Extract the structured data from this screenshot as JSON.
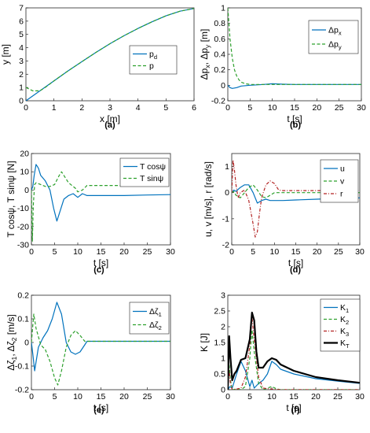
{
  "chart_data": [
    {
      "panel_label": "(a)",
      "type": "line",
      "xlabel": "x [m]",
      "ylabel": "y [m]",
      "xlim": [
        0,
        6
      ],
      "ylim": [
        0,
        7
      ],
      "xticks": [
        "0",
        "1",
        "2",
        "3",
        "4",
        "5",
        "6"
      ],
      "yticks": [
        "0",
        "1",
        "2",
        "3",
        "4",
        "5",
        "6",
        "7"
      ],
      "grid": false,
      "legend": "center-right",
      "series": [
        {
          "name": "p_d",
          "color": "#0072BD",
          "dash": "solid",
          "x": [
            0,
            0.5,
            1,
            1.5,
            2,
            2.5,
            3,
            3.5,
            4,
            4.5,
            5,
            5.5,
            6
          ],
          "y": [
            0,
            0.75,
            1.5,
            2.25,
            2.95,
            3.65,
            4.3,
            4.9,
            5.45,
            5.95,
            6.4,
            6.75,
            6.95
          ]
        },
        {
          "name": "p",
          "color": "#2CA02C",
          "dash": "dashed",
          "x": [
            0,
            0.25,
            0.5,
            0.75,
            1,
            1.5,
            2,
            2.5,
            3,
            3.5,
            4,
            4.5,
            5,
            5.5,
            6
          ],
          "y": [
            1,
            0.75,
            0.75,
            1.1,
            1.5,
            2.25,
            2.95,
            3.65,
            4.3,
            4.9,
            5.45,
            5.95,
            6.4,
            6.75,
            6.95
          ]
        }
      ]
    },
    {
      "panel_label": "(b)",
      "type": "line",
      "xlabel": "t [s]",
      "ylabel": "Δp_x, Δp_y [m]",
      "xlim": [
        0,
        30
      ],
      "ylim": [
        -0.2,
        1
      ],
      "xticks": [
        "0",
        "5",
        "10",
        "15",
        "20",
        "25",
        "30"
      ],
      "yticks": [
        "-0.2",
        "0",
        "0.2",
        "0.4",
        "0.6",
        "0.8",
        "1"
      ],
      "grid": false,
      "legend": "top-right",
      "series": [
        {
          "name": "Δp_x",
          "color": "#0072BD",
          "dash": "solid",
          "x": [
            0,
            0.5,
            1,
            2,
            3,
            5,
            8,
            10,
            12,
            15,
            20,
            25,
            30
          ],
          "y": [
            0,
            -0.03,
            -0.04,
            -0.03,
            -0.01,
            0.0,
            0.01,
            0.02,
            0.015,
            0.01,
            0.01,
            0.01,
            0.01
          ]
        },
        {
          "name": "Δp_y",
          "color": "#2CA02C",
          "dash": "dashed",
          "x": [
            0,
            0.5,
            1,
            1.5,
            2,
            2.5,
            3,
            4,
            5,
            8,
            10,
            15,
            20,
            30
          ],
          "y": [
            1,
            0.6,
            0.35,
            0.2,
            0.12,
            0.07,
            0.04,
            0.02,
            0.01,
            0.01,
            0.01,
            0.01,
            0.01,
            0.01
          ]
        }
      ]
    },
    {
      "panel_label": "(c)",
      "type": "line",
      "xlabel": "t [s]",
      "ylabel": "T cosψ, T sinψ [N]",
      "xlim": [
        0,
        30
      ],
      "ylim": [
        -30,
        20
      ],
      "xticks": [
        "0",
        "5",
        "10",
        "15",
        "20",
        "25",
        "30"
      ],
      "yticks": [
        "-30",
        "-20",
        "-10",
        "0",
        "10",
        "20"
      ],
      "grid": false,
      "legend": "top-right",
      "series": [
        {
          "name": "T cosψ",
          "color": "#0072BD",
          "dash": "solid",
          "x": [
            0,
            0.3,
            0.6,
            1,
            1.5,
            2,
            3,
            4,
            4.8,
            5.5,
            6,
            7,
            8,
            9,
            10,
            11,
            12,
            15,
            20,
            25,
            30
          ],
          "y": [
            0,
            2,
            8,
            14,
            12,
            8,
            5,
            0,
            -10,
            -17,
            -13,
            -5,
            -3,
            -2,
            -4,
            -2,
            -3,
            -3,
            -3,
            -2.7,
            -2.5
          ]
        },
        {
          "name": "T sinψ",
          "color": "#2CA02C",
          "dash": "dashed",
          "x": [
            0,
            0.2,
            0.4,
            0.7,
            1,
            2,
            3,
            4,
            5,
            6,
            6.5,
            7,
            8,
            9,
            9.5,
            10,
            11,
            12,
            15,
            30
          ],
          "y": [
            0,
            -28,
            -8,
            3,
            4,
            3,
            2,
            2,
            3,
            8,
            10,
            8,
            4,
            2,
            1,
            -1,
            0,
            2.5,
            2.5,
            2.5
          ]
        }
      ]
    },
    {
      "panel_label": "(d)",
      "type": "line",
      "xlabel": "t [s]",
      "ylabel": "u, v [m/s], r [rad/s]",
      "xlim": [
        0,
        30
      ],
      "ylim": [
        -2,
        1.5
      ],
      "xticks": [
        "0",
        "5",
        "10",
        "15",
        "20",
        "25",
        "30"
      ],
      "yticks": [
        "-2",
        "-1",
        "0",
        "1"
      ],
      "grid": false,
      "legend": "top-right",
      "series": [
        {
          "name": "u",
          "color": "#0072BD",
          "dash": "solid",
          "x": [
            0,
            0.5,
            1,
            2,
            3,
            4,
            5,
            6,
            7,
            8,
            9,
            10,
            12,
            15,
            20,
            25,
            30
          ],
          "y": [
            0,
            0.1,
            0.05,
            0.2,
            0.3,
            0.3,
            0.0,
            -0.4,
            -0.3,
            -0.25,
            -0.3,
            -0.3,
            -0.3,
            -0.28,
            -0.25,
            -0.22,
            -0.2
          ]
        },
        {
          "name": "v",
          "color": "#2CA02C",
          "dash": "dashed",
          "x": [
            0,
            0.5,
            1,
            2,
            3,
            4,
            5,
            6,
            7,
            8,
            9,
            10,
            12,
            15,
            20,
            30
          ],
          "y": [
            0,
            0.05,
            -0.1,
            -0.2,
            0.0,
            0.2,
            0.3,
            0.1,
            -0.15,
            -0.2,
            -0.1,
            0.0,
            0.0,
            0.0,
            0.0,
            0.0
          ]
        },
        {
          "name": "r",
          "color": "#B22222",
          "dash": "dashdot",
          "x": [
            0,
            0.3,
            0.6,
            1,
            1.5,
            2,
            3,
            4,
            5,
            5.5,
            6,
            6.5,
            7,
            8,
            9,
            10,
            11,
            12,
            15,
            20,
            30
          ],
          "y": [
            0,
            1.25,
            0.9,
            0.3,
            -0.2,
            0.0,
            0.1,
            -0.3,
            -1.2,
            -1.7,
            -1.5,
            -0.8,
            -0.2,
            0.3,
            0.45,
            0.35,
            0.1,
            0.08,
            0.08,
            0.08,
            0.08
          ]
        }
      ]
    },
    {
      "panel_label": "(e)",
      "type": "line",
      "xlabel": "t [s]",
      "ylabel": "Δζ_1, Δζ_2 [m/s]",
      "xlim": [
        0,
        30
      ],
      "ylim": [
        -0.2,
        0.2
      ],
      "xticks": [
        "0",
        "5",
        "10",
        "15",
        "20",
        "25",
        "30"
      ],
      "yticks": [
        "-0.2",
        "-0.1",
        "0",
        "0.1",
        "0.2"
      ],
      "grid": false,
      "legend": "top-right",
      "series": [
        {
          "name": "Δζ_1",
          "color": "#0072BD",
          "dash": "solid",
          "x": [
            0,
            0.3,
            0.7,
            1.5,
            2.5,
            3.5,
            4.5,
            5.5,
            6.5,
            7.5,
            8.5,
            9.5,
            10.5,
            11.5,
            12,
            15,
            20,
            30
          ],
          "y": [
            0,
            -0.05,
            -0.12,
            -0.02,
            0.02,
            0.05,
            0.1,
            0.17,
            0.12,
            0.0,
            -0.04,
            -0.05,
            -0.04,
            -0.01,
            0.005,
            0.005,
            0.005,
            0.005
          ]
        },
        {
          "name": "Δζ_2",
          "color": "#2CA02C",
          "dash": "dashed",
          "x": [
            0,
            0.2,
            0.5,
            1,
            2,
            3,
            4,
            5,
            5.7,
            6.5,
            7.5,
            8.5,
            9.5,
            10.5,
            11.5,
            12,
            15,
            30
          ],
          "y": [
            0,
            0.05,
            0.12,
            0.06,
            -0.01,
            -0.03,
            -0.08,
            -0.15,
            -0.18,
            -0.12,
            -0.02,
            0.03,
            0.05,
            0.03,
            0.005,
            0.005,
            0.005,
            0.005
          ]
        }
      ]
    },
    {
      "panel_label": "(f)",
      "type": "line",
      "xlabel": "t [s]",
      "ylabel": "K [J]",
      "xlim": [
        0,
        30
      ],
      "ylim": [
        0,
        3
      ],
      "xticks": [
        "0",
        "5",
        "10",
        "15",
        "20",
        "25",
        "30"
      ],
      "yticks": [
        "0",
        "0.5",
        "1",
        "1.5",
        "2",
        "2.5",
        "3"
      ],
      "grid": false,
      "legend": "top-right",
      "series": [
        {
          "name": "K_1",
          "color": "#0072BD",
          "dash": "solid",
          "x": [
            0,
            0.5,
            1,
            2,
            3,
            4,
            5,
            5.5,
            6,
            7,
            8,
            9,
            10,
            11,
            12,
            15,
            20,
            25,
            30
          ],
          "y": [
            0,
            0.1,
            0.05,
            0.5,
            0.9,
            0.6,
            0.1,
            0.3,
            0.05,
            0.2,
            0.3,
            0.5,
            0.9,
            0.8,
            0.65,
            0.5,
            0.35,
            0.27,
            0.2
          ]
        },
        {
          "name": "K_2",
          "color": "#2CA02C",
          "dash": "dashed",
          "x": [
            0,
            0.3,
            0.6,
            1,
            2,
            3,
            4,
            5,
            5.5,
            6,
            7,
            8,
            9,
            10,
            11,
            12,
            15,
            30
          ],
          "y": [
            0,
            0.8,
            0.3,
            0.0,
            0.02,
            0.0,
            0.1,
            1.0,
            1.9,
            1.2,
            0.2,
            0.0,
            0.05,
            0.1,
            0.03,
            0.0,
            0.0,
            0.0
          ]
        },
        {
          "name": "K_3",
          "color": "#B22222",
          "dash": "dashdot",
          "x": [
            0,
            0.3,
            0.6,
            1,
            2,
            3,
            4,
            5,
            5.5,
            6,
            7,
            8,
            10,
            12,
            15,
            30
          ],
          "y": [
            0,
            0.6,
            0.2,
            0.0,
            0.02,
            0.05,
            0.4,
            1.4,
            2.3,
            1.6,
            0.4,
            0.05,
            0.02,
            0.0,
            0.0,
            0.0
          ]
        },
        {
          "name": "K_T",
          "color": "#000000",
          "dash": "solid",
          "bold": true,
          "x": [
            0,
            0.3,
            0.6,
            1,
            1.5,
            2,
            3,
            4,
            5,
            5.5,
            6,
            6.5,
            7,
            8,
            9,
            10,
            11,
            12,
            15,
            20,
            25,
            30
          ],
          "y": [
            0,
            1.7,
            1.0,
            0.3,
            0.5,
            0.6,
            0.95,
            1.0,
            1.6,
            2.45,
            2.2,
            1.2,
            0.7,
            0.7,
            0.9,
            1.0,
            0.95,
            0.8,
            0.6,
            0.4,
            0.3,
            0.22
          ]
        }
      ]
    }
  ]
}
